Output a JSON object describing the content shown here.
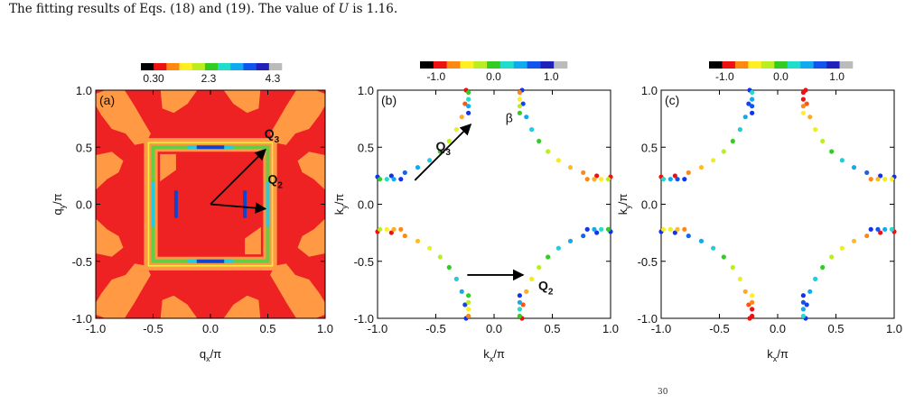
{
  "caption": {
    "text_before": "The fitting results of Eqs. (18) and (19). The value of ",
    "var": "U",
    "text_after": " is 1.16."
  },
  "page_footnote": "30",
  "colors": {
    "colorbar": [
      "#000000",
      "#ee1111",
      "#ff8811",
      "#ffee22",
      "#bbee22",
      "#33cc22",
      "#22ddcc",
      "#11aaee",
      "#1155ee",
      "#2222bb",
      "#bbbbbb"
    ],
    "panel_a_background": "#ee2222",
    "panel_a_orange": "#ff9944",
    "panel_a_yellow": "#eeee44",
    "panel_a_ring": "#66cc44",
    "arrow": "#000000"
  },
  "chart_data": [
    {
      "panel": "(a)",
      "type": "heatmap",
      "colorbar_ticks": [
        "0.30",
        "2.3",
        "4.3"
      ],
      "x_ticks": [
        "-1.0",
        "-0.5",
        "0.0",
        "0.5",
        "1.0"
      ],
      "y_ticks": [
        "-1.0",
        "-0.5",
        "0.0",
        "0.5",
        "1.0"
      ],
      "xlabel": {
        "main": "q",
        "sub": "x",
        "tail": "/π"
      },
      "ylabel": {
        "main": "q",
        "sub": "y",
        "tail": "/π"
      },
      "xlim": [
        -1,
        1
      ],
      "ylim": [
        -1,
        1
      ],
      "arrows": [
        {
          "label": "Q",
          "sub": "3",
          "from": [
            0,
            0
          ],
          "to": [
            0.48,
            0.48
          ]
        },
        {
          "label": "Q",
          "sub": "2",
          "from": [
            0,
            0
          ],
          "to": [
            0.48,
            -0.04
          ]
        }
      ]
    },
    {
      "panel": "(b)",
      "type": "scatter",
      "colorbar_ticks": [
        "-1.0",
        "0.0",
        "1.0"
      ],
      "x_ticks": [
        "-1.0",
        "-0.5",
        "0.0",
        "0.5",
        "1.0"
      ],
      "y_ticks": [
        "-1.0",
        "-0.5",
        "0.0",
        "0.5",
        "1.0"
      ],
      "xlabel": {
        "main": "k",
        "sub": "x",
        "tail": "/π"
      },
      "ylabel": {
        "main": "k",
        "sub": "y",
        "tail": "/π"
      },
      "xlim": [
        -1,
        1
      ],
      "ylim": [
        -1,
        1
      ],
      "annotation": "β",
      "arrows": [
        {
          "label": "Q",
          "sub": "3",
          "from": [
            -0.68,
            0.21
          ],
          "to": [
            -0.2,
            0.7
          ]
        },
        {
          "label": "Q",
          "sub": "2",
          "from": [
            -0.23,
            -0.62
          ],
          "to": [
            0.25,
            -0.62
          ]
        }
      ]
    },
    {
      "panel": "(c)",
      "type": "scatter",
      "colorbar_ticks": [
        "-1.0",
        "0.0",
        "1.0"
      ],
      "x_ticks": [
        "-1.0",
        "-0.5",
        "0.0",
        "0.5",
        "1.0"
      ],
      "y_ticks": [
        "-1.0",
        "-0.5",
        "0.0",
        "0.5",
        "1.0"
      ],
      "xlabel": {
        "main": "k",
        "sub": "x",
        "tail": "/π"
      },
      "ylabel": {
        "main": "k",
        "sub": "y",
        "tail": "/π"
      },
      "xlim": [
        -1,
        1
      ],
      "ylim": [
        -1,
        1
      ],
      "arrows": []
    }
  ]
}
